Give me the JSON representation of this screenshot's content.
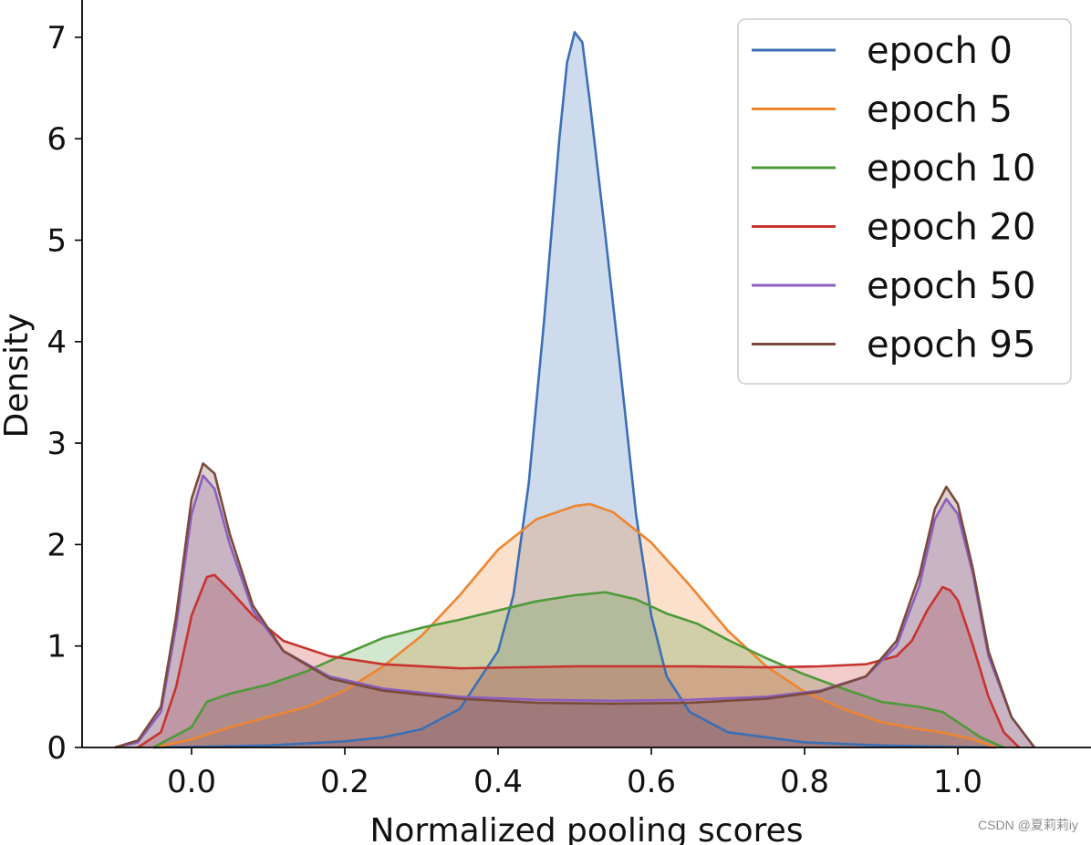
{
  "chart_data": {
    "type": "area",
    "title": "",
    "xlabel": "Normalized pooling scores",
    "ylabel": "Density",
    "xlim": [
      -0.13,
      1.12
    ],
    "ylim": [
      0,
      7.35
    ],
    "xticks": [
      0.0,
      0.2,
      0.4,
      0.6,
      0.8,
      1.0
    ],
    "xtick_labels": [
      "0.0",
      "0.2",
      "0.4",
      "0.6",
      "0.8",
      "1.0"
    ],
    "yticks": [
      0,
      1,
      2,
      3,
      4,
      5,
      6,
      7
    ],
    "ytick_labels": [
      "0",
      "1",
      "2",
      "3",
      "4",
      "5",
      "6",
      "7"
    ],
    "grid": false,
    "legend_position": "top-right",
    "series": [
      {
        "name": "epoch 0",
        "color": "#3b6fb5",
        "points": [
          [
            -0.05,
            0
          ],
          [
            0.0,
            0.005
          ],
          [
            0.1,
            0.02
          ],
          [
            0.2,
            0.06
          ],
          [
            0.25,
            0.1
          ],
          [
            0.3,
            0.18
          ],
          [
            0.35,
            0.38
          ],
          [
            0.4,
            0.95
          ],
          [
            0.42,
            1.5
          ],
          [
            0.44,
            2.6
          ],
          [
            0.46,
            4.2
          ],
          [
            0.48,
            6.0
          ],
          [
            0.49,
            6.75
          ],
          [
            0.5,
            7.05
          ],
          [
            0.51,
            6.95
          ],
          [
            0.52,
            6.35
          ],
          [
            0.54,
            5.05
          ],
          [
            0.56,
            3.7
          ],
          [
            0.58,
            2.3
          ],
          [
            0.6,
            1.3
          ],
          [
            0.62,
            0.7
          ],
          [
            0.65,
            0.35
          ],
          [
            0.7,
            0.15
          ],
          [
            0.8,
            0.05
          ],
          [
            0.9,
            0.02
          ],
          [
            1.0,
            0.005
          ],
          [
            1.05,
            0
          ]
        ]
      },
      {
        "name": "epoch 5",
        "color": "#ee8531",
        "points": [
          [
            -0.05,
            0
          ],
          [
            0.0,
            0.08
          ],
          [
            0.05,
            0.2
          ],
          [
            0.1,
            0.3
          ],
          [
            0.15,
            0.4
          ],
          [
            0.2,
            0.56
          ],
          [
            0.25,
            0.8
          ],
          [
            0.3,
            1.1
          ],
          [
            0.35,
            1.5
          ],
          [
            0.4,
            1.95
          ],
          [
            0.45,
            2.25
          ],
          [
            0.5,
            2.38
          ],
          [
            0.52,
            2.4
          ],
          [
            0.55,
            2.32
          ],
          [
            0.6,
            2.02
          ],
          [
            0.65,
            1.6
          ],
          [
            0.7,
            1.15
          ],
          [
            0.75,
            0.8
          ],
          [
            0.8,
            0.55
          ],
          [
            0.85,
            0.38
          ],
          [
            0.9,
            0.25
          ],
          [
            0.95,
            0.18
          ],
          [
            0.97,
            0.16
          ],
          [
            0.99,
            0.13
          ],
          [
            1.02,
            0.08
          ],
          [
            1.05,
            0
          ]
        ]
      },
      {
        "name": "epoch 10",
        "color": "#4e9a3a",
        "points": [
          [
            -0.05,
            0
          ],
          [
            0.0,
            0.2
          ],
          [
            0.02,
            0.45
          ],
          [
            0.05,
            0.53
          ],
          [
            0.1,
            0.62
          ],
          [
            0.15,
            0.75
          ],
          [
            0.2,
            0.92
          ],
          [
            0.25,
            1.08
          ],
          [
            0.3,
            1.18
          ],
          [
            0.35,
            1.26
          ],
          [
            0.4,
            1.35
          ],
          [
            0.45,
            1.44
          ],
          [
            0.5,
            1.5
          ],
          [
            0.54,
            1.53
          ],
          [
            0.58,
            1.46
          ],
          [
            0.62,
            1.32
          ],
          [
            0.66,
            1.22
          ],
          [
            0.7,
            1.06
          ],
          [
            0.75,
            0.88
          ],
          [
            0.8,
            0.72
          ],
          [
            0.85,
            0.58
          ],
          [
            0.9,
            0.45
          ],
          [
            0.95,
            0.4
          ],
          [
            0.98,
            0.35
          ],
          [
            1.0,
            0.25
          ],
          [
            1.03,
            0.1
          ],
          [
            1.06,
            0
          ]
        ]
      },
      {
        "name": "epoch 20",
        "color": "#c7342f",
        "points": [
          [
            -0.07,
            0
          ],
          [
            -0.04,
            0.15
          ],
          [
            -0.02,
            0.6
          ],
          [
            0.0,
            1.3
          ],
          [
            0.02,
            1.68
          ],
          [
            0.03,
            1.7
          ],
          [
            0.05,
            1.55
          ],
          [
            0.08,
            1.3
          ],
          [
            0.12,
            1.05
          ],
          [
            0.18,
            0.9
          ],
          [
            0.25,
            0.82
          ],
          [
            0.35,
            0.78
          ],
          [
            0.5,
            0.8
          ],
          [
            0.65,
            0.8
          ],
          [
            0.75,
            0.79
          ],
          [
            0.82,
            0.8
          ],
          [
            0.88,
            0.82
          ],
          [
            0.92,
            0.9
          ],
          [
            0.94,
            1.05
          ],
          [
            0.96,
            1.35
          ],
          [
            0.98,
            1.58
          ],
          [
            0.99,
            1.55
          ],
          [
            1.0,
            1.45
          ],
          [
            1.02,
            1.0
          ],
          [
            1.04,
            0.5
          ],
          [
            1.06,
            0.15
          ],
          [
            1.08,
            0
          ]
        ]
      },
      {
        "name": "epoch 50",
        "color": "#8a5fbf",
        "points": [
          [
            -0.1,
            0
          ],
          [
            -0.07,
            0.05
          ],
          [
            -0.04,
            0.35
          ],
          [
            -0.02,
            1.2
          ],
          [
            0.0,
            2.3
          ],
          [
            0.015,
            2.68
          ],
          [
            0.03,
            2.55
          ],
          [
            0.05,
            2.0
          ],
          [
            0.08,
            1.35
          ],
          [
            0.12,
            0.95
          ],
          [
            0.18,
            0.7
          ],
          [
            0.25,
            0.58
          ],
          [
            0.35,
            0.5
          ],
          [
            0.45,
            0.47
          ],
          [
            0.55,
            0.46
          ],
          [
            0.65,
            0.47
          ],
          [
            0.75,
            0.5
          ],
          [
            0.82,
            0.56
          ],
          [
            0.88,
            0.7
          ],
          [
            0.92,
            1.0
          ],
          [
            0.95,
            1.6
          ],
          [
            0.97,
            2.25
          ],
          [
            0.985,
            2.45
          ],
          [
            1.0,
            2.3
          ],
          [
            1.02,
            1.7
          ],
          [
            1.04,
            0.9
          ],
          [
            1.07,
            0.3
          ],
          [
            1.1,
            0
          ]
        ]
      },
      {
        "name": "epoch 95",
        "color": "#7b4a3b",
        "points": [
          [
            -0.1,
            0
          ],
          [
            -0.07,
            0.07
          ],
          [
            -0.04,
            0.4
          ],
          [
            -0.02,
            1.3
          ],
          [
            0.0,
            2.45
          ],
          [
            0.015,
            2.8
          ],
          [
            0.03,
            2.7
          ],
          [
            0.05,
            2.1
          ],
          [
            0.08,
            1.4
          ],
          [
            0.12,
            0.95
          ],
          [
            0.18,
            0.68
          ],
          [
            0.25,
            0.56
          ],
          [
            0.35,
            0.48
          ],
          [
            0.45,
            0.44
          ],
          [
            0.55,
            0.43
          ],
          [
            0.65,
            0.44
          ],
          [
            0.75,
            0.48
          ],
          [
            0.82,
            0.55
          ],
          [
            0.88,
            0.7
          ],
          [
            0.92,
            1.05
          ],
          [
            0.95,
            1.7
          ],
          [
            0.97,
            2.35
          ],
          [
            0.985,
            2.57
          ],
          [
            1.0,
            2.4
          ],
          [
            1.02,
            1.75
          ],
          [
            1.04,
            0.95
          ],
          [
            1.07,
            0.3
          ],
          [
            1.1,
            0
          ]
        ]
      }
    ]
  },
  "watermark": "CSDN @夏莉莉iy"
}
